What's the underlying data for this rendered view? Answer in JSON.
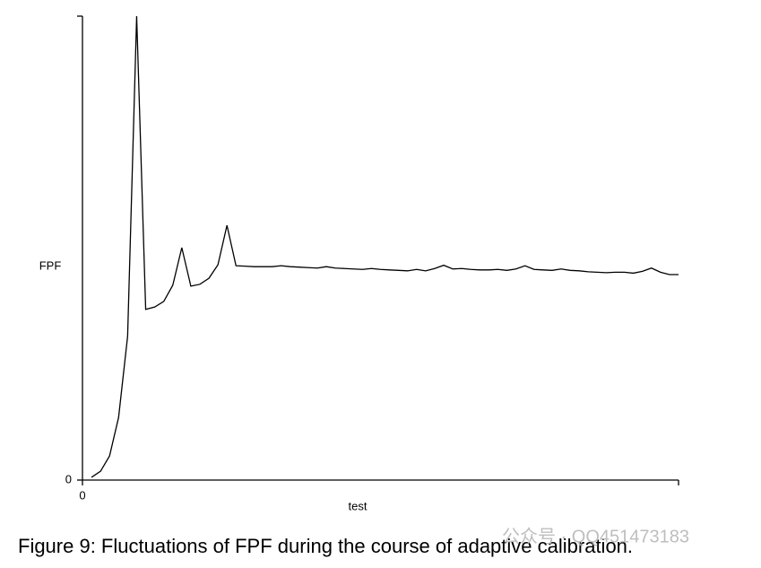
{
  "chart_data": {
    "type": "line",
    "caption": "Figure 9: Fluctuations of FPF during the course of adaptive calibration.",
    "watermark": "公众号 · QQ451473183",
    "ylabel": "FPF",
    "xlabel": "test",
    "x": [
      1,
      2,
      3,
      4,
      5,
      6,
      7,
      8,
      9,
      10,
      11,
      12,
      13,
      14,
      15,
      16,
      17,
      18,
      19,
      20,
      21,
      22,
      23,
      24,
      25,
      26,
      27,
      28,
      29,
      30,
      31,
      32,
      33,
      34,
      35,
      36,
      37,
      38,
      39,
      40,
      41,
      42,
      43,
      44,
      45,
      46,
      47,
      48,
      49,
      50,
      51,
      52,
      53,
      54,
      55,
      56,
      57,
      58,
      59,
      60,
      61,
      62,
      63,
      64,
      65,
      66
    ],
    "series": [
      {
        "color": "#000000",
        "values": [
          0.6,
          1.9,
          5.2,
          13.5,
          31,
          100,
          36.8,
          37.3,
          38.5,
          42,
          50.1,
          41.8,
          42.2,
          43.5,
          46.4,
          54.9,
          46.2,
          46.1,
          46.0,
          46.0,
          46.0,
          46.2,
          46.0,
          45.9,
          45.8,
          45.7,
          46.0,
          45.7,
          45.6,
          45.5,
          45.4,
          45.6,
          45.4,
          45.3,
          45.2,
          45.1,
          45.4,
          45.1,
          45.6,
          46.3,
          45.5,
          45.6,
          45.4,
          45.3,
          45.3,
          45.4,
          45.2,
          45.5,
          46.2,
          45.4,
          45.3,
          45.2,
          45.5,
          45.2,
          45.1,
          44.9,
          44.8,
          44.7,
          44.8,
          44.8,
          44.6,
          45.0,
          45.7,
          44.8,
          44.3,
          44.3
        ]
      }
    ],
    "xlim": [
      0,
      66
    ],
    "ylim": [
      0,
      100
    ],
    "xticks": [
      0
    ],
    "yticks": [
      0
    ]
  }
}
